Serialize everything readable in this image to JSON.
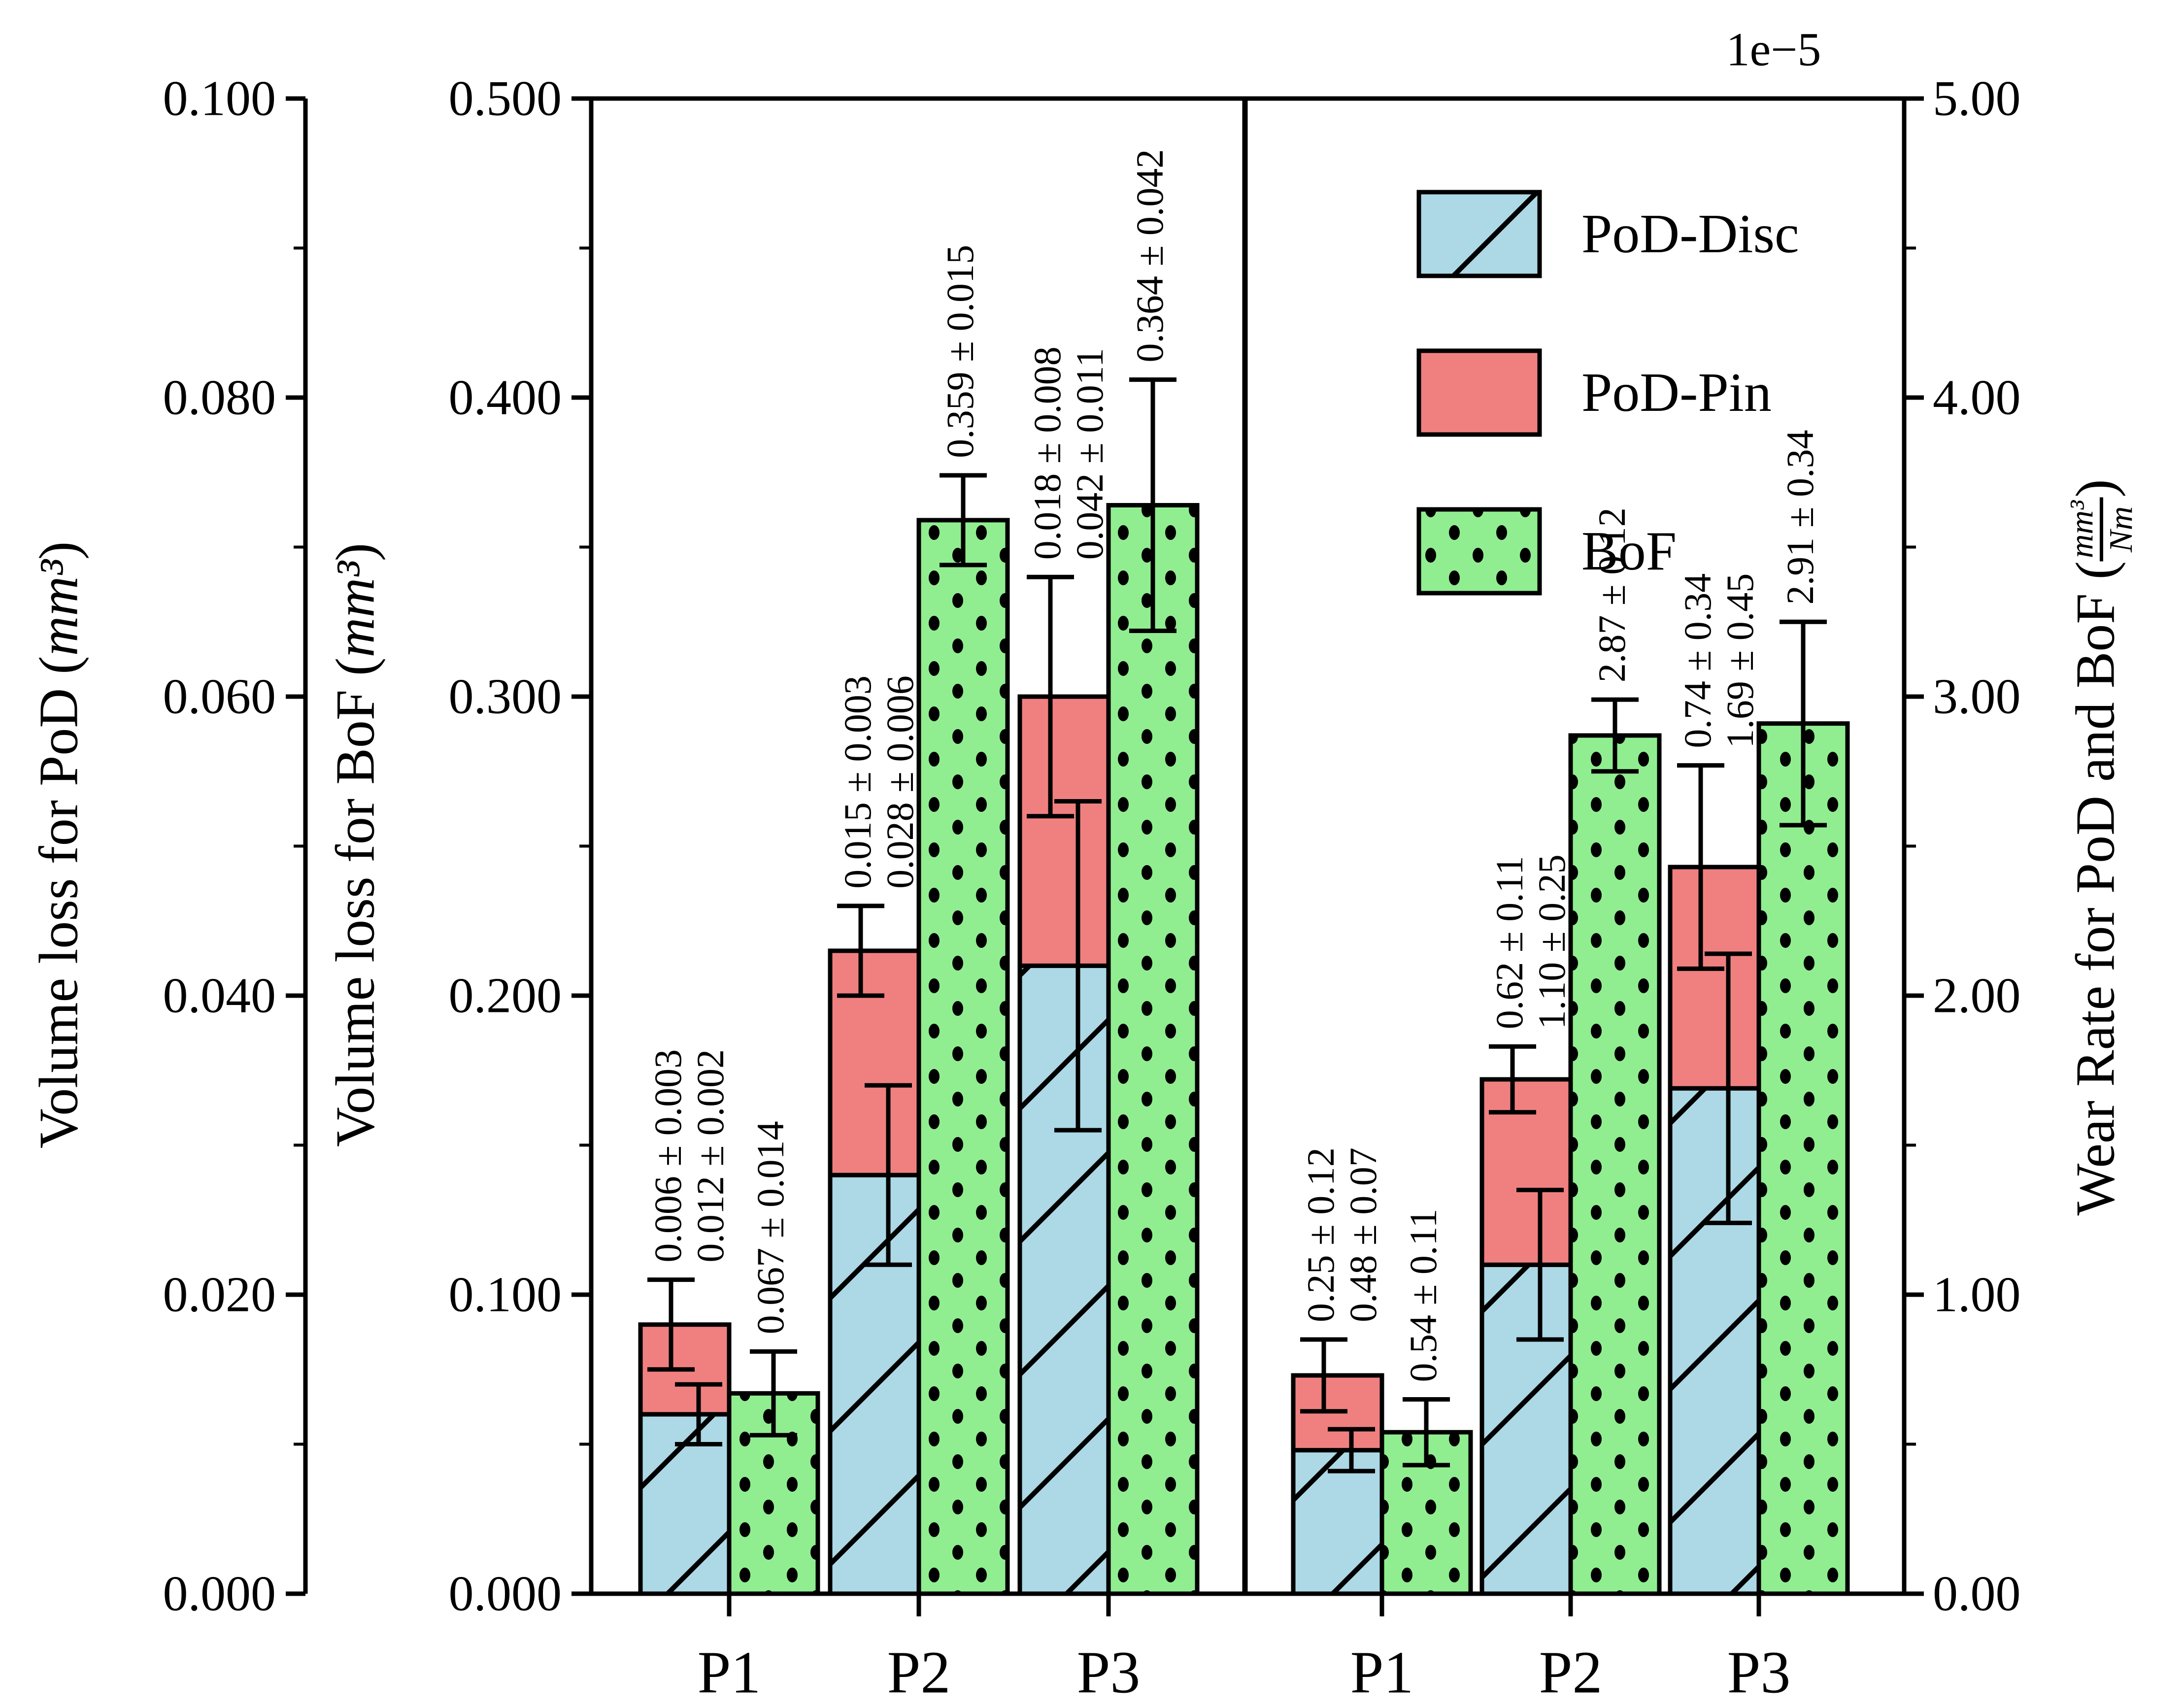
{
  "figure": {
    "offset_text": "1e−5",
    "colors": {
      "disc": "#ADD8E6",
      "pin": "#F08080",
      "bof": "#90EE90",
      "edge": "#000000",
      "background": "#FFFFFF"
    },
    "legend": [
      {
        "label": "PoD-Disc",
        "pattern": "diagonal-hatch",
        "color": "#ADD8E6"
      },
      {
        "label": "PoD-Pin",
        "pattern": "solid",
        "color": "#F08080"
      },
      {
        "label": "BoF",
        "pattern": "dots",
        "color": "#90EE90"
      }
    ],
    "axes": {
      "pod": {
        "title_prefix": "Volume loss for PoD (",
        "unit": "mm³",
        "title_suffix": ")",
        "tick_labels": [
          "0.000",
          "0.020",
          "0.040",
          "0.060",
          "0.080",
          "0.100"
        ],
        "range": [
          0,
          0.1
        ]
      },
      "bof": {
        "title_prefix": "Volume loss for BoF (",
        "unit": "mm³",
        "title_suffix": ")",
        "tick_labels": [
          "0.000",
          "0.100",
          "0.200",
          "0.300",
          "0.400",
          "0.500"
        ],
        "range": [
          0,
          0.5
        ]
      },
      "wear": {
        "title_prefix": "Wear Rate for PoD and BoF (",
        "frac_num": "mm³",
        "frac_den": "Nm",
        "title_suffix": ")",
        "tick_labels": [
          "0.00",
          "1.00",
          "2.00",
          "3.00",
          "4.00",
          "5.00"
        ],
        "range": [
          0,
          5
        ]
      },
      "x": {
        "categories": [
          "P1",
          "P2",
          "P3"
        ]
      }
    }
  },
  "chart_data": [
    {
      "type": "bar",
      "panel": "volume-loss",
      "categories": [
        "P1",
        "P2",
        "P3"
      ],
      "stacked_axis": "pod",
      "side_axis": "bof",
      "series": [
        {
          "name": "PoD-Disc",
          "role": "stack-bottom",
          "values": [
            0.012,
            0.028,
            0.042
          ],
          "errors": [
            0.002,
            0.006,
            0.011
          ],
          "data_labels": [
            "0.012 ± 0.002",
            "0.028 ± 0.006",
            "0.042 ± 0.011"
          ]
        },
        {
          "name": "PoD-Pin",
          "role": "stack-top",
          "values": [
            0.006,
            0.015,
            0.018
          ],
          "errors": [
            0.003,
            0.003,
            0.008
          ],
          "data_labels": [
            "0.006 ± 0.003",
            "0.015 ± 0.003",
            "0.018 ± 0.008"
          ]
        },
        {
          "name": "BoF",
          "role": "side",
          "values": [
            0.067,
            0.359,
            0.364
          ],
          "errors": [
            0.014,
            0.015,
            0.042
          ],
          "data_labels": [
            "0.067 ± 0.014",
            "0.359 ± 0.015",
            "0.364 ± 0.042"
          ]
        }
      ]
    },
    {
      "type": "bar",
      "panel": "wear-rate-1e-5",
      "categories": [
        "P1",
        "P2",
        "P3"
      ],
      "stacked_axis": "wear",
      "side_axis": "wear",
      "series": [
        {
          "name": "PoD-Disc",
          "role": "stack-bottom",
          "values": [
            0.48,
            1.1,
            1.69
          ],
          "errors": [
            0.07,
            0.25,
            0.45
          ],
          "data_labels": [
            "0.48 ± 0.07",
            "1.10 ± 0.25",
            "1.69 ± 0.45"
          ]
        },
        {
          "name": "PoD-Pin",
          "role": "stack-top",
          "values": [
            0.25,
            0.62,
            0.74
          ],
          "errors": [
            0.12,
            0.11,
            0.34
          ],
          "data_labels": [
            "0.25 ± 0.12",
            "0.62 ± 0.11",
            "0.74 ± 0.34"
          ]
        },
        {
          "name": "BoF",
          "role": "side",
          "values": [
            0.54,
            2.87,
            2.91
          ],
          "errors": [
            0.11,
            0.12,
            0.34
          ],
          "data_labels": [
            "0.54 ± 0.11",
            "2.87 ± 0.12",
            "2.91 ± 0.34"
          ]
        }
      ]
    }
  ]
}
